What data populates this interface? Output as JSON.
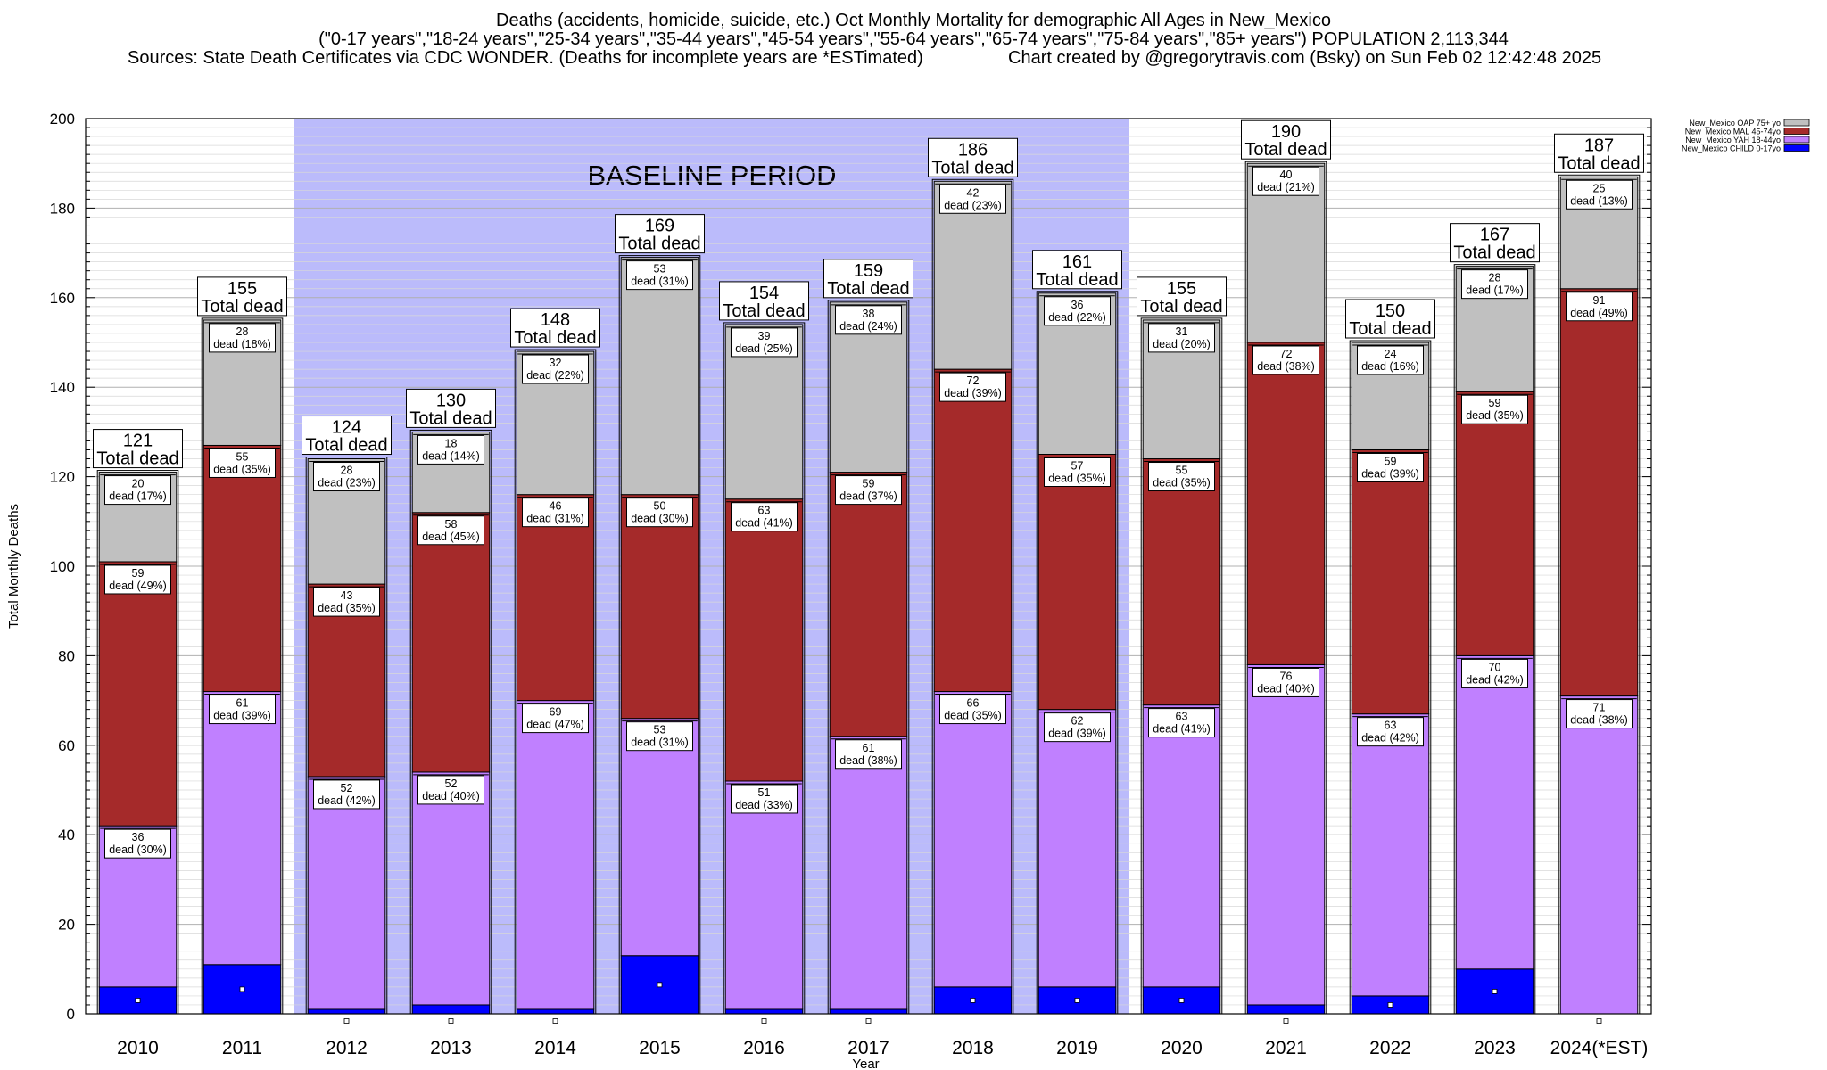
{
  "header": {
    "title": "Deaths (accidents, homicide, suicide, etc.) Oct Monthly Mortality for demographic All Ages in New_Mexico",
    "subtitle": "(\"0-17 years\",\"18-24 years\",\"25-34 years\",\"35-44 years\",\"45-54 years\",\"55-64 years\",\"65-74 years\",\"75-84 years\",\"85+ years\") POPULATION 2,113,344",
    "sources": "Sources: State Death Certificates via CDC WONDER. (Deaths for incomplete years are *ESTimated)",
    "credit": "Chart created by @gregorytravis.com (Bsky) on Sun Feb 02 12:42:48 2025"
  },
  "chart_data": {
    "type": "bar",
    "stacked": true,
    "categories": [
      "2010",
      "2011",
      "2012",
      "2013",
      "2014",
      "2015",
      "2016",
      "2017",
      "2018",
      "2019",
      "2020",
      "2021",
      "2022",
      "2023",
      "2024(*EST)"
    ],
    "ylabel": "Total Monthly Deaths",
    "xlabel": "Year",
    "ylim": [
      0,
      200
    ],
    "ytick_step": 20,
    "grid": true,
    "legend_position": "top-right",
    "annotation": {
      "text": "BASELINE PERIOD",
      "from": "2012",
      "to": "2019",
      "color": "#bbbbfb"
    },
    "total_label": "Total dead",
    "segment_label_word": "dead",
    "totals": [
      121,
      155,
      124,
      130,
      148,
      169,
      154,
      159,
      186,
      161,
      155,
      190,
      150,
      167,
      187
    ],
    "series": [
      {
        "name": "New_Mexico CHILD 0-17yo",
        "color": "#0000ff",
        "values": [
          6,
          11,
          1,
          2,
          1,
          13,
          1,
          1,
          6,
          6,
          6,
          2,
          4,
          10,
          0
        ]
      },
      {
        "name": "New_Mexico YAH 18-44yo",
        "color": "#c080ff",
        "values": [
          36,
          61,
          52,
          52,
          69,
          53,
          51,
          61,
          66,
          62,
          63,
          76,
          63,
          70,
          71
        ],
        "percents": [
          "30%",
          "39%",
          "42%",
          "40%",
          "47%",
          "31%",
          "33%",
          "38%",
          "35%",
          "39%",
          "41%",
          "40%",
          "42%",
          "42%",
          "38%"
        ]
      },
      {
        "name": "New_Mexico MAL 45-74yo",
        "color": "#a52a2a",
        "values": [
          59,
          55,
          43,
          58,
          46,
          50,
          63,
          59,
          72,
          57,
          55,
          72,
          59,
          59,
          91
        ],
        "percents": [
          "49%",
          "35%",
          "35%",
          "45%",
          "31%",
          "30%",
          "41%",
          "37%",
          "39%",
          "35%",
          "35%",
          "38%",
          "39%",
          "35%",
          "49%"
        ]
      },
      {
        "name": "New_Mexico OAP 75+ yo",
        "color": "#c0c0c0",
        "values": [
          20,
          28,
          28,
          18,
          32,
          53,
          39,
          38,
          42,
          36,
          31,
          40,
          24,
          28,
          25
        ],
        "percents": [
          "17%",
          "18%",
          "23%",
          "14%",
          "22%",
          "31%",
          "25%",
          "24%",
          "23%",
          "22%",
          "20%",
          "21%",
          "16%",
          "17%",
          "13%"
        ]
      }
    ]
  }
}
